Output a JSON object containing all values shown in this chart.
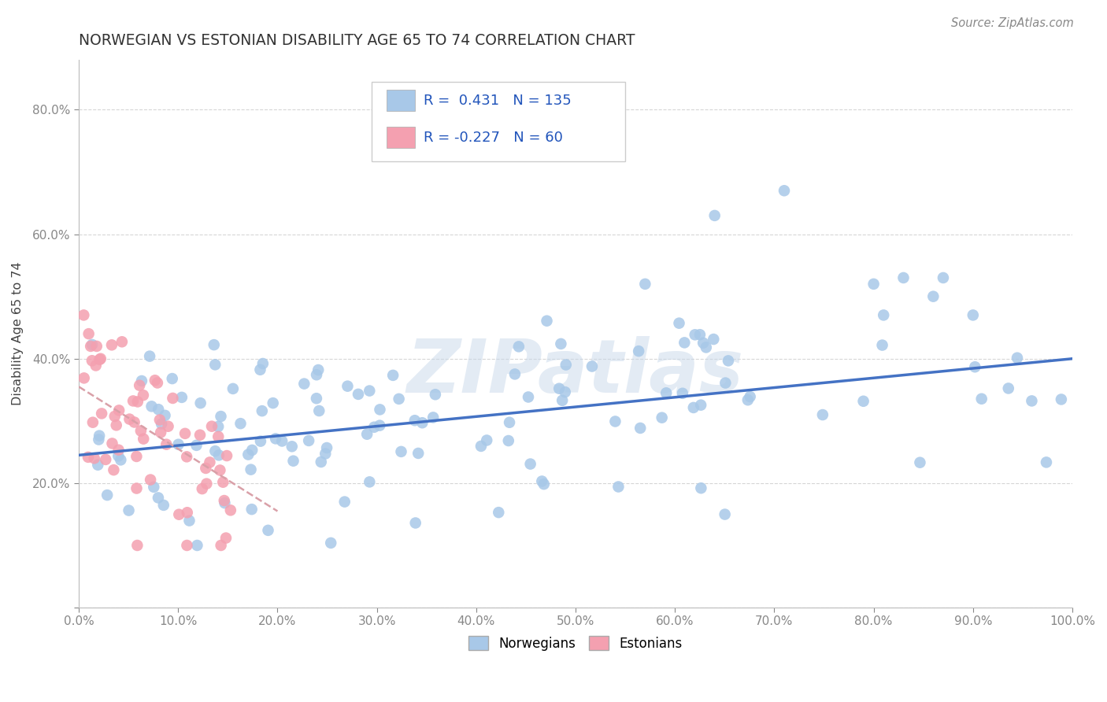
{
  "title": "NORWEGIAN VS ESTONIAN DISABILITY AGE 65 TO 74 CORRELATION CHART",
  "source_text": "Source: ZipAtlas.com",
  "ylabel": "Disability Age 65 to 74",
  "xlim": [
    0.0,
    1.0
  ],
  "ylim": [
    0.0,
    0.88
  ],
  "xticks": [
    0.0,
    0.1,
    0.2,
    0.3,
    0.4,
    0.5,
    0.6,
    0.7,
    0.8,
    0.9,
    1.0
  ],
  "yticks": [
    0.0,
    0.2,
    0.4,
    0.6,
    0.8
  ],
  "xticklabels": [
    "0.0%",
    "10.0%",
    "20.0%",
    "30.0%",
    "40.0%",
    "50.0%",
    "60.0%",
    "70.0%",
    "80.0%",
    "90.0%",
    "100.0%"
  ],
  "yticklabels": [
    "",
    "20.0%",
    "40.0%",
    "60.0%",
    "80.0%"
  ],
  "norwegian_color": "#a8c8e8",
  "estonian_color": "#f4a0b0",
  "norwegian_line_color": "#4472c4",
  "estonian_line_color": "#d9a0a8",
  "R_norwegian": 0.431,
  "N_norwegian": 135,
  "R_estonian": -0.227,
  "N_estonian": 60,
  "legend_label_norwegian": "Norwegians",
  "legend_label_estonian": "Estonians",
  "watermark": "ZIPatlas",
  "background_color": "#ffffff",
  "grid_color": "#cccccc",
  "title_color": "#333333",
  "nor_trend_start_y": 0.245,
  "nor_trend_end_y": 0.4,
  "est_trend_start_x": 0.0,
  "est_trend_start_y": 0.355,
  "est_trend_end_x": 0.2,
  "est_trend_end_y": 0.155
}
